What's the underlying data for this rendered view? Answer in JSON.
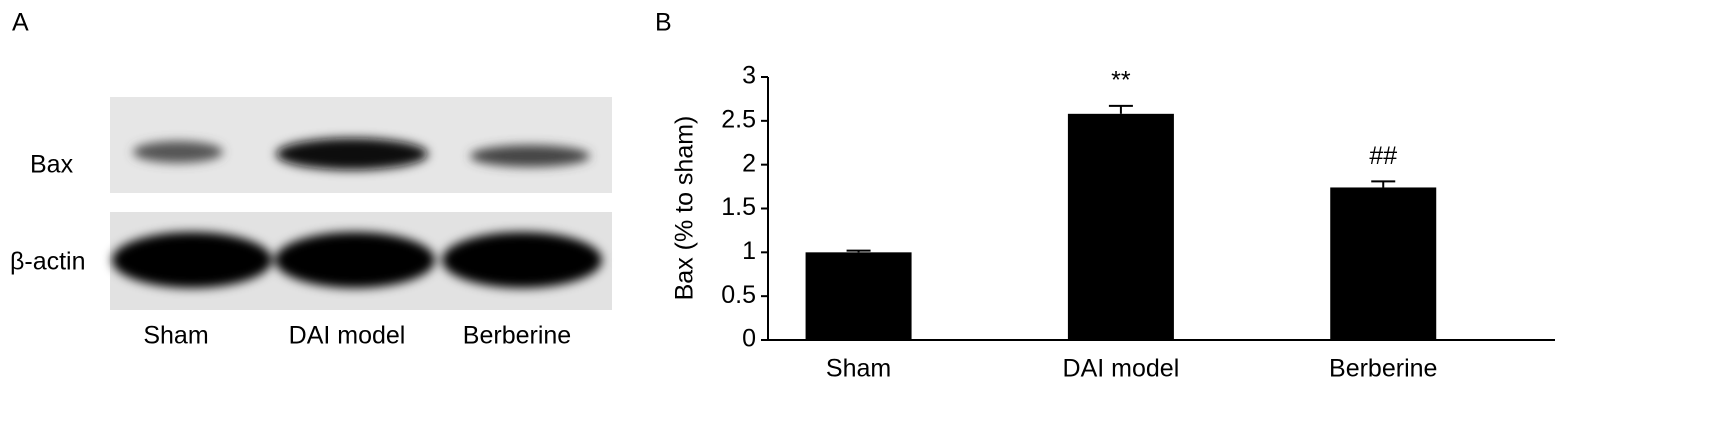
{
  "panel_labels": [
    "A",
    "B"
  ],
  "blot": {
    "rows": [
      "Bax",
      "β-actin"
    ],
    "lanes": [
      "Sham",
      "DAI model",
      "Berberine"
    ]
  },
  "chart_data": {
    "type": "bar",
    "ylabel": "Bax (% to sham)",
    "categories": [
      "Sham",
      "DAI model",
      "Berberine"
    ],
    "values": [
      1.0,
      2.58,
      1.74
    ],
    "errors": [
      0.02,
      0.09,
      0.07
    ],
    "annotations": [
      null,
      "**",
      "##"
    ],
    "color": "#000000",
    "ylim": [
      0,
      3
    ],
    "yticks": [
      0,
      0.5,
      1,
      1.5,
      2,
      2.5,
      3
    ],
    "grid": false
  }
}
